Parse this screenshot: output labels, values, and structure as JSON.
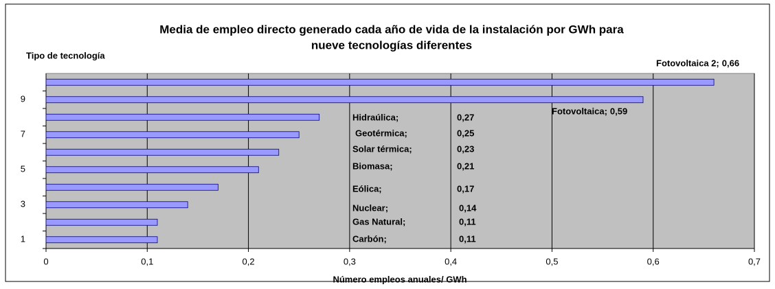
{
  "chart_data": {
    "type": "barh",
    "title": [
      "Media de empleo directo generado cada año de vida de la instalación por GWh para",
      "nueve tecnologías diferentes"
    ],
    "y_label": "Tipo de tecnología",
    "x_label": "Número empleos anuales/ GWh",
    "categories": [
      "1",
      null,
      "3",
      null,
      "5",
      null,
      "7",
      null,
      "9",
      null
    ],
    "values": [
      0.11,
      0.11,
      0.14,
      0.17,
      0.21,
      0.23,
      0.25,
      0.27,
      0.59,
      0.66
    ],
    "bar_names": [
      "Carbón;",
      "Gas Natural;",
      "Nuclear;",
      "Eólica;",
      "Biomasa;",
      "Solar térmica;",
      "Geotérmica;",
      "Hidraúlica;",
      "Fotovoltaica;",
      "Fotovoltaica 2;"
    ],
    "value_labels": [
      "0,11",
      "0,11",
      "0,14",
      "0,17",
      "0,21",
      "0,23",
      "0,25",
      "0,27",
      "0,59",
      "0,66"
    ],
    "color": "#9999ff",
    "xlim": [
      0,
      0.7
    ],
    "xticks": [
      0,
      {
        "value": 0.1,
        "label": "0,1"
      },
      {
        "value": 0.2,
        "label": "0,2"
      },
      {
        "value": 0.3,
        "label": "0,3"
      },
      {
        "value": 0.4,
        "label": "0,4"
      },
      {
        "value": 0.5,
        "label": "0,5"
      },
      {
        "value": 0.6,
        "label": "0,6"
      },
      {
        "value": 0.7,
        "label": "0,7"
      }
    ],
    "grid": true
  }
}
